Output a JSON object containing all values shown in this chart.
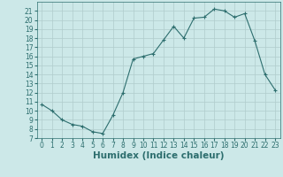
{
  "x": [
    0,
    1,
    2,
    3,
    4,
    5,
    6,
    7,
    8,
    9,
    10,
    11,
    12,
    13,
    14,
    15,
    16,
    17,
    18,
    19,
    20,
    21,
    22,
    23
  ],
  "y": [
    10.7,
    10.0,
    9.0,
    8.5,
    8.3,
    7.7,
    7.5,
    9.5,
    12.0,
    15.7,
    16.0,
    16.3,
    17.8,
    19.3,
    18.0,
    20.2,
    20.3,
    21.2,
    21.0,
    20.3,
    20.7,
    17.7,
    14.0,
    12.3
  ],
  "line_color": "#2d6e6e",
  "marker": "+",
  "marker_size": 3,
  "xlabel": "Humidex (Indice chaleur)",
  "background_color": "#cce8e8",
  "grid_color": "#b0cccc",
  "ylim": [
    7,
    22
  ],
  "xlim": [
    -0.5,
    23.5
  ],
  "yticks": [
    7,
    8,
    9,
    10,
    11,
    12,
    13,
    14,
    15,
    16,
    17,
    18,
    19,
    20,
    21
  ],
  "xticks": [
    0,
    1,
    2,
    3,
    4,
    5,
    6,
    7,
    8,
    9,
    10,
    11,
    12,
    13,
    14,
    15,
    16,
    17,
    18,
    19,
    20,
    21,
    22,
    23
  ],
  "tick_fontsize": 5.5,
  "xlabel_fontsize": 7.5
}
